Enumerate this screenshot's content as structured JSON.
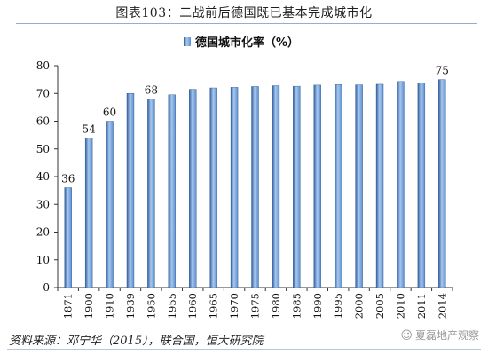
{
  "figure_title": "图表103：二战前后德国既已基本完成城市化",
  "source_note": "资料来源：邓宁华（2015），联合国，恒大研究院",
  "watermark": {
    "text": "夏磊地产观察",
    "icon": "wechat-icon"
  },
  "colors": {
    "bar": "#5b8fd0",
    "bar_dark": "#2f5f9e",
    "bar_light": "#a9c7ee",
    "axis": "#333333",
    "title_rule": "#8fb0d4"
  },
  "chart_data": {
    "type": "bar",
    "categories": [
      "1871",
      "1900",
      "1910",
      "1939",
      "1950",
      "1955",
      "1960",
      "1965",
      "1970",
      "1975",
      "1980",
      "1985",
      "1990",
      "1995",
      "2000",
      "2005",
      "2010",
      "2011",
      "2014"
    ],
    "series": [
      {
        "name": "德国城市化率（%）",
        "values": [
          36,
          54,
          60,
          70,
          68,
          69.5,
          71.5,
          72,
          72.2,
          72.5,
          72.8,
          72.6,
          73,
          73.2,
          73.1,
          73.3,
          74.3,
          73.8,
          75
        ]
      }
    ],
    "data_labels": [
      {
        "category": "1871",
        "text": "36"
      },
      {
        "category": "1900",
        "text": "54"
      },
      {
        "category": "1910",
        "text": "60"
      },
      {
        "category": "1950",
        "text": "68"
      },
      {
        "category": "2014",
        "text": "75"
      }
    ],
    "ylim": [
      0,
      80
    ],
    "yticks": [
      0,
      10,
      20,
      30,
      40,
      50,
      60,
      70,
      80
    ],
    "legend_position": "top-center",
    "grid": false,
    "title": "",
    "xlabel": "",
    "ylabel": ""
  }
}
